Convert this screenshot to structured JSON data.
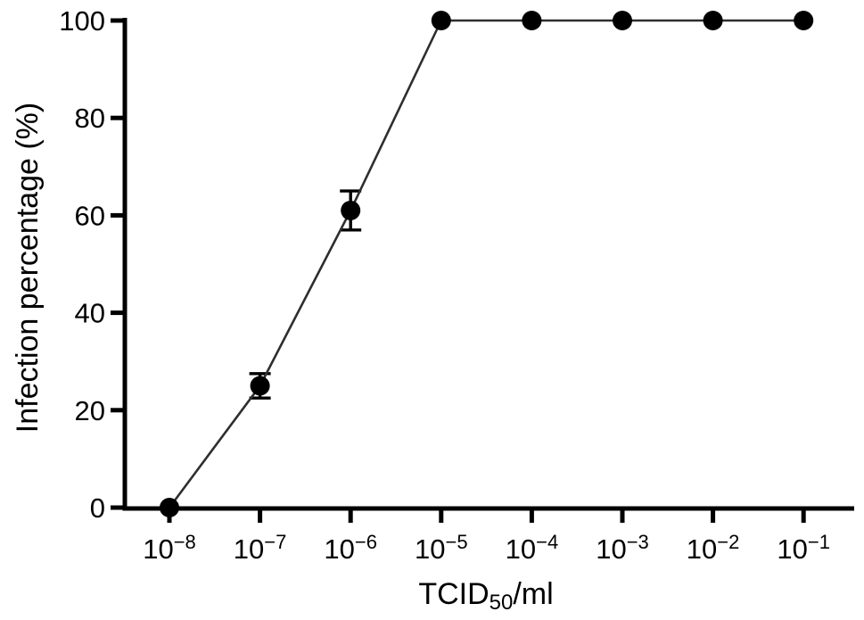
{
  "figure": {
    "background_color": "#ffffff",
    "ink_color": "#000000",
    "line_color": "#2e2e2e"
  },
  "chart_data": {
    "type": "line",
    "title": "",
    "ylabel": "Infection percentage (%)",
    "xlabel_parts": [
      {
        "text": "TCID",
        "style": "normal"
      },
      {
        "text": "50",
        "style": "sub"
      },
      {
        "text": "/ml",
        "style": "normal"
      }
    ],
    "x_scale": "log10",
    "x_tick_labels": [
      {
        "mantissa": "10",
        "exponent": "−8"
      },
      {
        "mantissa": "10",
        "exponent": "−7"
      },
      {
        "mantissa": "10",
        "exponent": "−6"
      },
      {
        "mantissa": "10",
        "exponent": "−5"
      },
      {
        "mantissa": "10",
        "exponent": "−4"
      },
      {
        "mantissa": "10",
        "exponent": "−3"
      },
      {
        "mantissa": "10",
        "exponent": "−2"
      },
      {
        "mantissa": "10",
        "exponent": "−1"
      }
    ],
    "x_values": [
      1e-08,
      1e-07,
      1e-06,
      1e-05,
      0.0001,
      0.001,
      0.01,
      0.1
    ],
    "y_ticks": [
      0,
      20,
      40,
      60,
      80,
      100
    ],
    "ylim": [
      0,
      100
    ],
    "grid": false,
    "legend": false,
    "series": [
      {
        "name": "Infection percentage",
        "marker": "filled-circle",
        "color": "#000000",
        "values": [
          0,
          25,
          61,
          100,
          100,
          100,
          100,
          100
        ],
        "errors": [
          0,
          2.5,
          4,
          0,
          0,
          0,
          0,
          0
        ]
      }
    ]
  }
}
